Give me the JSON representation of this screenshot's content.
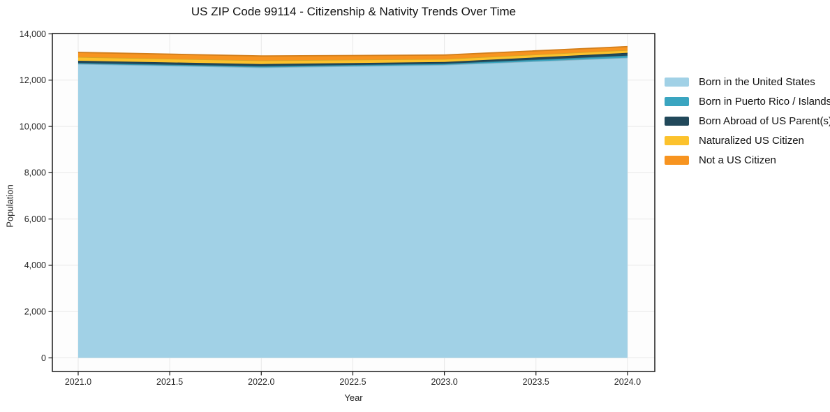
{
  "chart_data": {
    "type": "area",
    "stacked": true,
    "title": "US ZIP Code 99114 - Citizenship & Nativity Trends Over Time",
    "xlabel": "Year",
    "ylabel": "Population",
    "x": [
      2021,
      2022,
      2023,
      2024
    ],
    "series": [
      {
        "name": "Born in the United States",
        "color": "#a1d1e6",
        "values": [
          12700,
          12550,
          12660,
          12970
        ]
      },
      {
        "name": "Born in Puerto Rico / Islands",
        "color": "#3aa5c0",
        "values": [
          40,
          50,
          50,
          90
        ]
      },
      {
        "name": "Born Abroad of US Parent(s)",
        "color": "#21485a",
        "values": [
          100,
          95,
          75,
          120
        ]
      },
      {
        "name": "Naturalized US Citizen",
        "color": "#fcc22d",
        "values": [
          160,
          155,
          130,
          120
        ]
      },
      {
        "name": "Not a US Citizen",
        "color": "#f79420",
        "values": [
          200,
          195,
          170,
          150
        ]
      }
    ],
    "xlim": [
      2020.859,
      2024.149
    ],
    "ylim": [
      -588,
      14015
    ],
    "x_ticks": {
      "values": [
        2021.0,
        2021.5,
        2022.0,
        2022.5,
        2023.0,
        2023.5,
        2024.0
      ],
      "labels": [
        "2021.0",
        "2021.5",
        "2022.0",
        "2022.5",
        "2023.0",
        "2023.5",
        "2024.0"
      ]
    },
    "y_ticks": {
      "values": [
        0,
        2000,
        4000,
        6000,
        8000,
        10000,
        12000,
        14000
      ],
      "labels": [
        "0",
        "2,000",
        "4,000",
        "6,000",
        "8,000",
        "10,000",
        "12,000",
        "14,000"
      ]
    },
    "grid": true,
    "legend_position": "right-outside",
    "colors": {
      "plot_background": "#fdfdfd",
      "grid_line": "#e8e8e8",
      "axis_border": "#1a1a1a",
      "tick_text": "#262626"
    }
  }
}
